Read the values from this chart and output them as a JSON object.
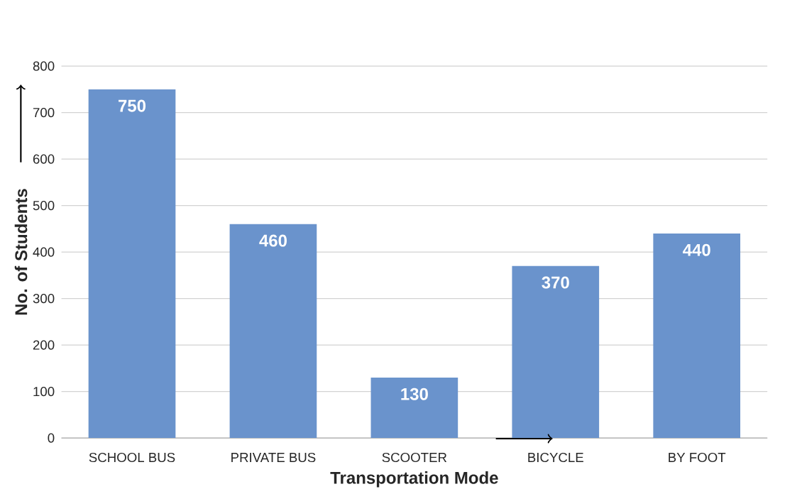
{
  "chart_data": {
    "type": "bar",
    "xlabel": "Transportation Mode",
    "ylabel": "No. of Students",
    "categories": [
      "SCHOOL BUS",
      "PRIVATE BUS",
      "SCOOTER",
      "BICYCLE",
      "BY FOOT"
    ],
    "values": [
      750,
      460,
      130,
      370,
      440
    ],
    "color": "#6a93cc",
    "ylim": [
      0,
      800
    ],
    "yticks": [
      0,
      100,
      200,
      300,
      400,
      500,
      600,
      700,
      800
    ],
    "grid": "y",
    "data_labels": true
  }
}
